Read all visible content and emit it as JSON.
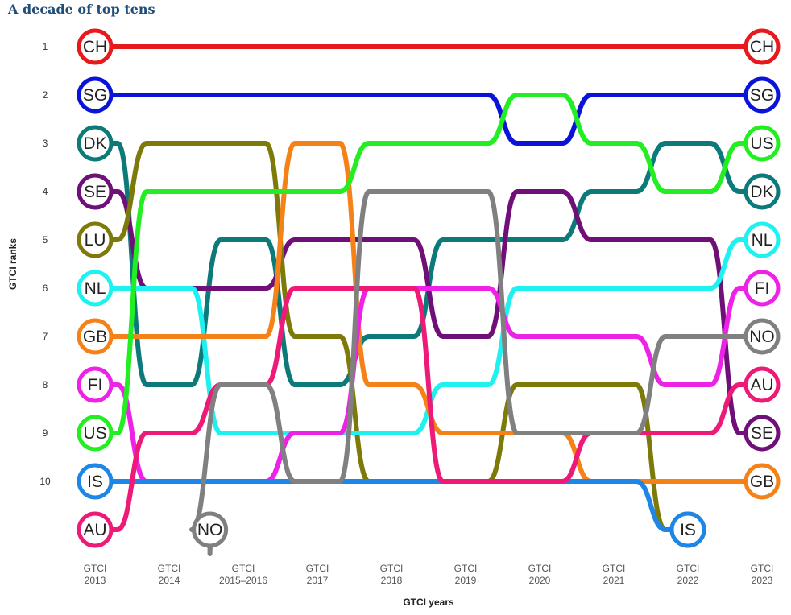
{
  "title": "A decade of top tens",
  "chart_data": {
    "type": "line",
    "title": "A decade of top tens",
    "xlabel": "GTCI years",
    "ylabel": "GTCI ranks",
    "categories": [
      [
        "GTCI",
        "2013"
      ],
      [
        "GTCI",
        "2014"
      ],
      [
        "GTCI",
        "2015–2016"
      ],
      [
        "GTCI",
        "2017"
      ],
      [
        "GTCI",
        "2018"
      ],
      [
        "GTCI",
        "2019"
      ],
      [
        "GTCI",
        "2020"
      ],
      [
        "GTCI",
        "2021"
      ],
      [
        "GTCI",
        "2022"
      ],
      [
        "GTCI",
        "2023"
      ]
    ],
    "y_ticks": [
      "1",
      "2",
      "3",
      "4",
      "5",
      "6",
      "7",
      "8",
      "9",
      "10"
    ],
    "ylim": [
      1,
      11
    ],
    "y_inverted": true,
    "grid": false,
    "legend": "none",
    "series": [
      {
        "name": "CH",
        "color": "#e8191d",
        "values": [
          1,
          1,
          1,
          1,
          1,
          1,
          1,
          1,
          1,
          1
        ],
        "start_label": true,
        "end_label": true
      },
      {
        "name": "SG",
        "color": "#0a14d9",
        "values": [
          2,
          2,
          2,
          2,
          2,
          2,
          3,
          2,
          2,
          2
        ],
        "start_label": true,
        "end_label": true
      },
      {
        "name": "DK",
        "color": "#0d7a7a",
        "values": [
          3,
          8,
          5,
          8,
          7,
          5,
          5,
          4,
          3,
          4
        ],
        "start_label": true,
        "end_label": true
      },
      {
        "name": "SE",
        "color": "#6f0f78",
        "values": [
          4,
          6,
          6,
          5,
          5,
          7,
          4,
          5,
          5,
          9
        ],
        "start_label": true,
        "end_label": true
      },
      {
        "name": "LU",
        "color": "#7d7a0a",
        "values": [
          5,
          3,
          3,
          7,
          10,
          10,
          8,
          8,
          11,
          null
        ],
        "start_label": true,
        "end_label": true
      },
      {
        "name": "NL",
        "color": "#1ff0f0",
        "values": [
          6,
          6,
          9,
          9,
          9,
          8,
          6,
          6,
          6,
          5
        ],
        "start_label": true,
        "end_label": true
      },
      {
        "name": "GB",
        "color": "#f58218",
        "values": [
          7,
          7,
          7,
          3,
          8,
          9,
          9,
          10,
          10,
          10
        ],
        "start_label": true,
        "end_label": true
      },
      {
        "name": "FI",
        "color": "#ee22e6",
        "values": [
          8,
          10,
          10,
          9,
          6,
          6,
          7,
          7,
          8,
          6
        ],
        "start_label": true,
        "end_label": true
      },
      {
        "name": "US",
        "color": "#22ee22",
        "values": [
          9,
          4,
          4,
          4,
          3,
          3,
          2,
          3,
          4,
          3
        ],
        "start_label": true,
        "end_label": true
      },
      {
        "name": "IS",
        "color": "#1e86e6",
        "values": [
          10,
          10,
          10,
          10,
          10,
          10,
          10,
          10,
          11,
          null
        ],
        "start_label": true,
        "end_label": true
      },
      {
        "name": "AU",
        "color": "#ee1a78",
        "values": [
          11,
          9,
          8,
          6,
          6,
          10,
          10,
          9,
          9,
          8
        ],
        "start_label": true,
        "end_label": true
      },
      {
        "name": "NO",
        "color": "#808080",
        "values": [
          null,
          11,
          8,
          10,
          4,
          4,
          9,
          9,
          7,
          7
        ],
        "start_label": true,
        "end_label": true
      }
    ]
  }
}
